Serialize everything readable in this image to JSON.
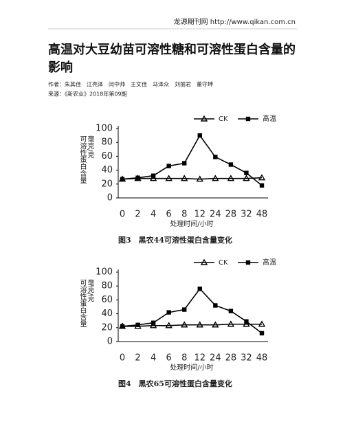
{
  "header": {
    "site": "龙源期刊网 http://www.qikan.com.cn"
  },
  "title": "高温对大豆幼苗可溶性糖和可溶性蛋白含量的影响",
  "authors": "作者：朱其佳　江亮泽　闫中帅　王文佳　马泽众　刘丽君　董守坤",
  "source": "来源：《新农业》2018年第09期",
  "chart_data": [
    {
      "type": "line",
      "caption": "图3　黑农44可溶性蛋白含量变化",
      "xlabel": "处理时间/小时",
      "ylabel": [
        "可溶性蛋白含量",
        "毫克/克"
      ],
      "categories": [
        "0",
        "2",
        "4",
        "6",
        "8",
        "12",
        "24",
        "28",
        "32",
        "48"
      ],
      "series": [
        {
          "name": "CK",
          "color": "#000000",
          "marker": "triangle",
          "values": [
            27,
            28,
            28,
            28,
            28,
            27,
            28,
            28,
            28,
            29
          ]
        },
        {
          "name": "高温",
          "color": "#000000",
          "marker": "square",
          "values": [
            27,
            29,
            32,
            46,
            50,
            90,
            59,
            48,
            36,
            18
          ]
        }
      ],
      "ylim": [
        0,
        100
      ],
      "yticks": [
        0,
        20,
        40,
        60,
        80,
        100
      ],
      "grid": false
    },
    {
      "type": "line",
      "caption": "图4　黑农65可溶性蛋白含量变化",
      "xlabel": "处理时间/小时",
      "ylabel": [
        "可溶性蛋白含量",
        "毫克/克"
      ],
      "categories": [
        "0",
        "2",
        "4",
        "6",
        "8",
        "12",
        "24",
        "28",
        "32",
        "48"
      ],
      "series": [
        {
          "name": "CK",
          "color": "#000000",
          "marker": "triangle",
          "values": [
            22,
            22,
            23,
            23,
            24,
            24,
            24,
            25,
            25,
            25
          ]
        },
        {
          "name": "高温",
          "color": "#000000",
          "marker": "square",
          "values": [
            22,
            24,
            27,
            42,
            46,
            76,
            52,
            44,
            29,
            12
          ]
        }
      ],
      "ylim": [
        0,
        100
      ],
      "yticks": [
        0,
        20,
        40,
        60,
        80,
        100
      ],
      "grid": false
    }
  ]
}
